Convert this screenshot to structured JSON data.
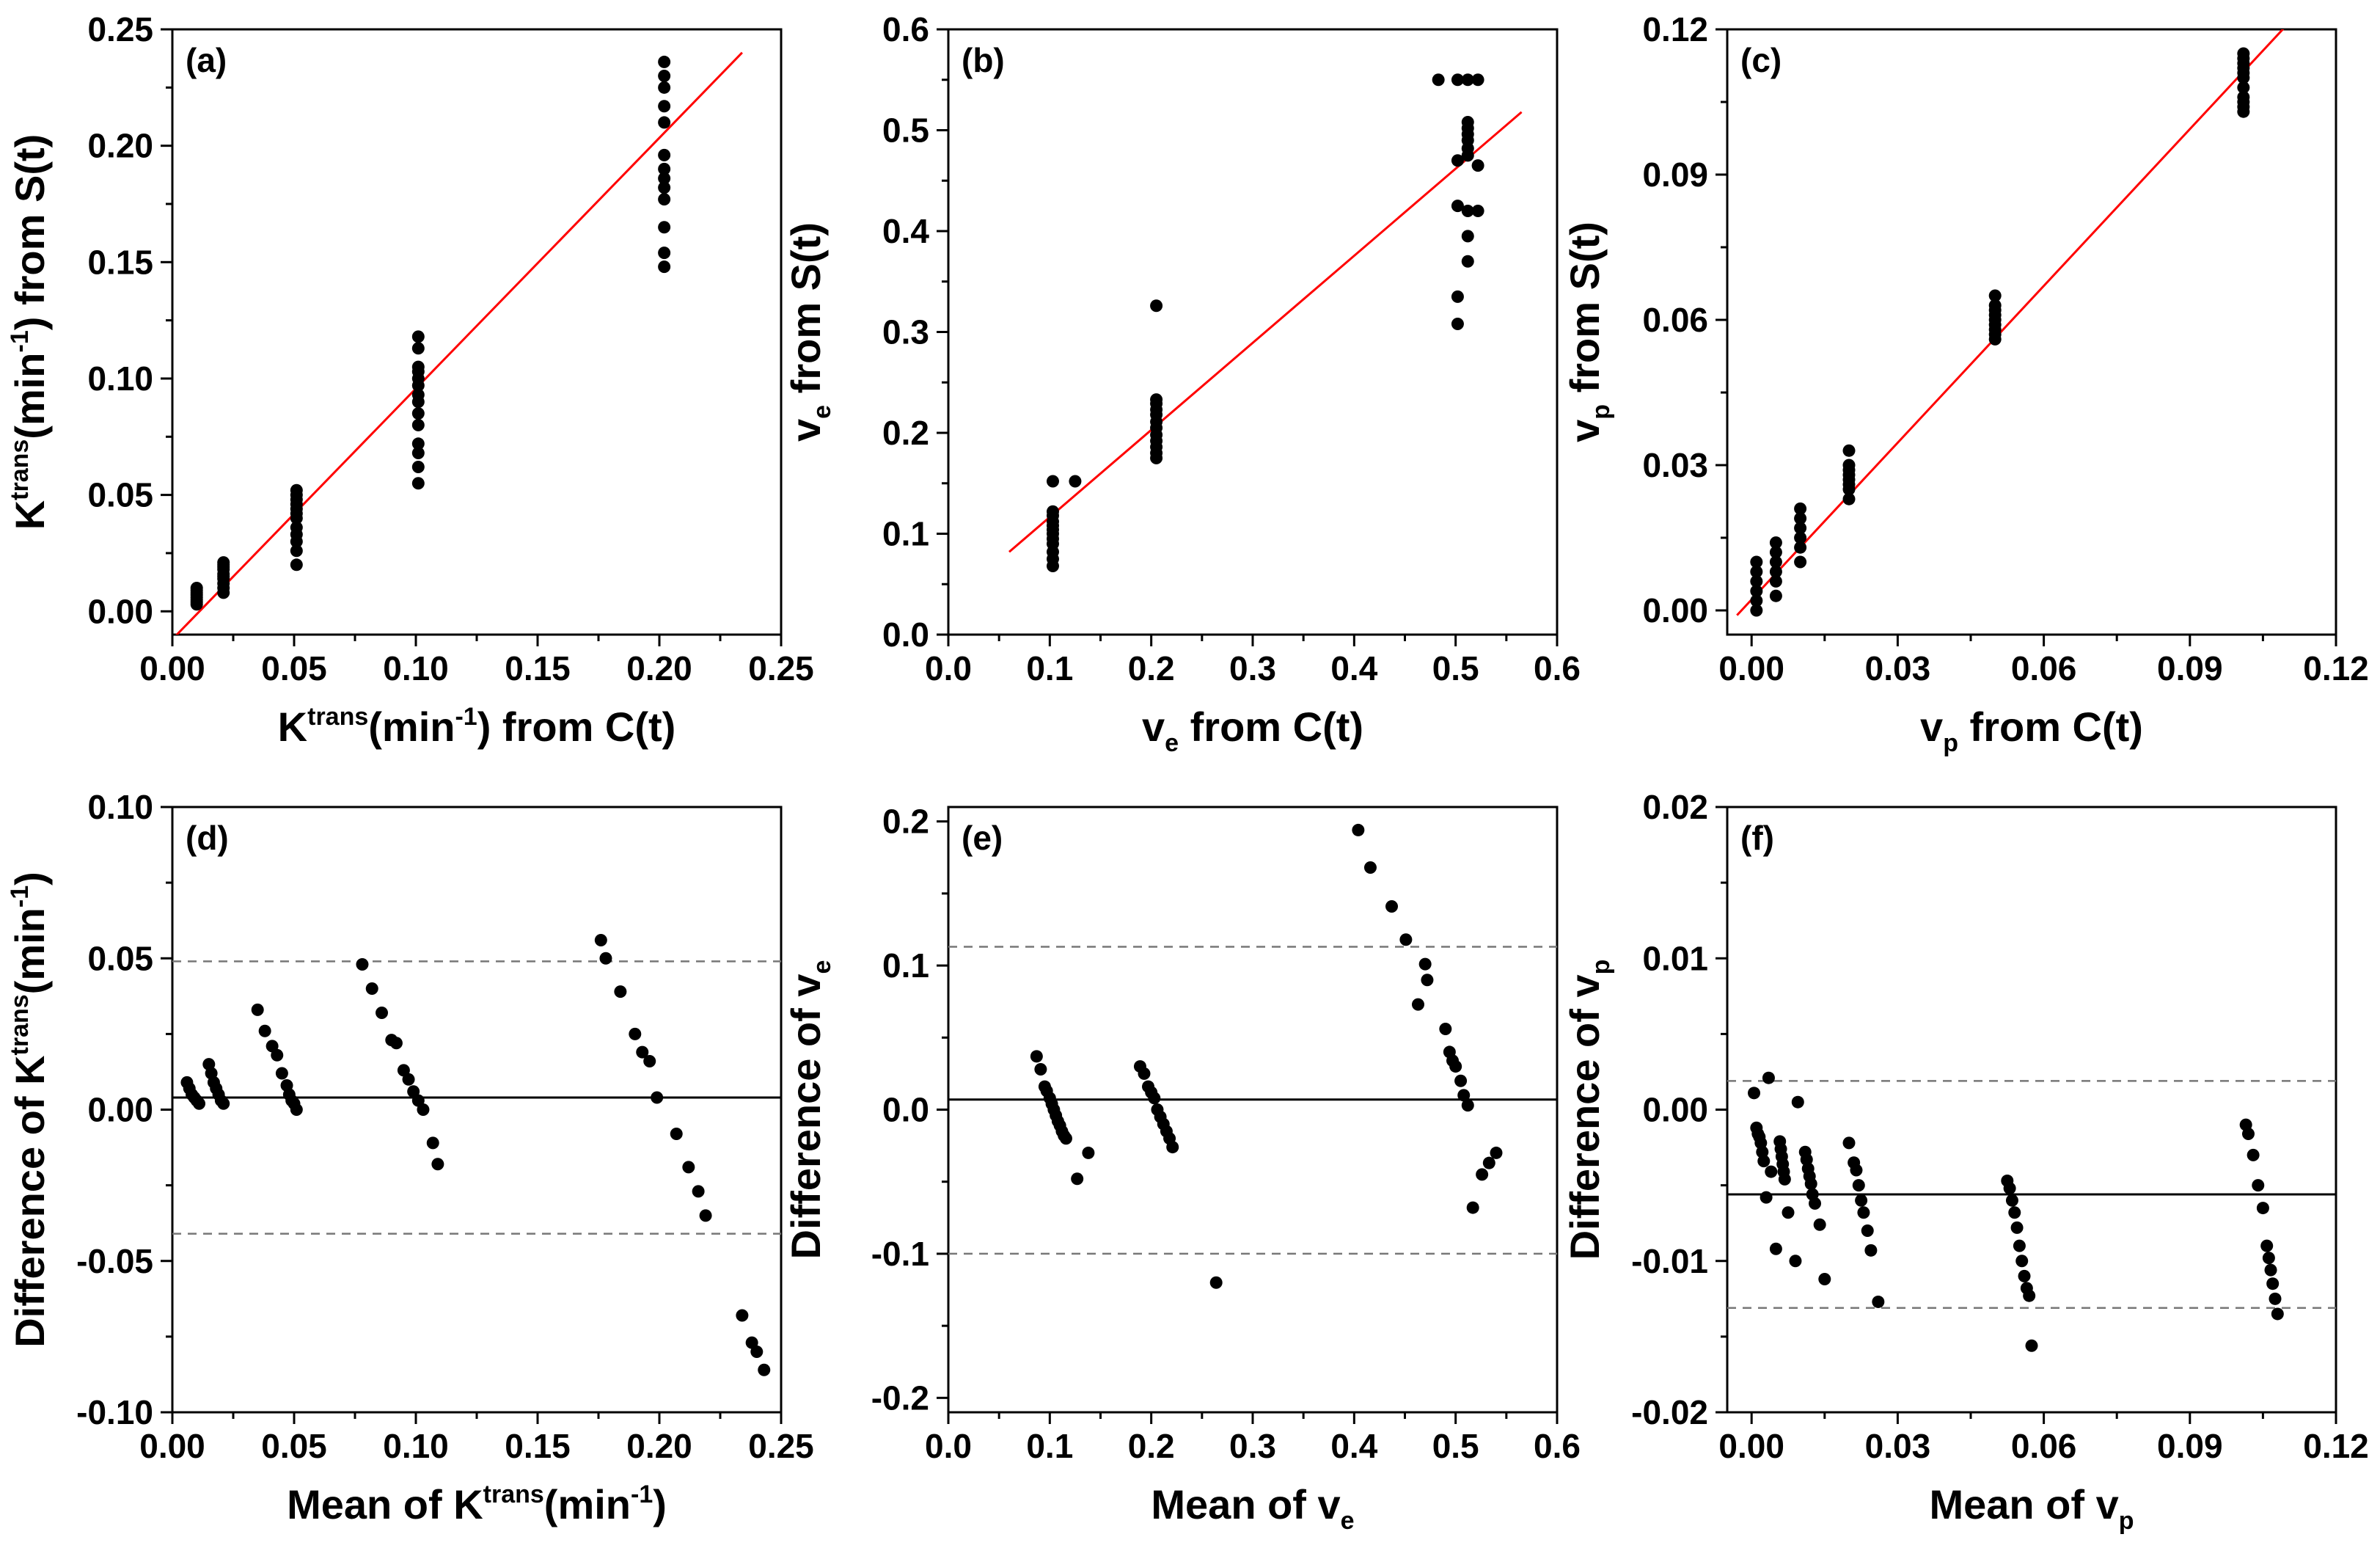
{
  "figure": {
    "description_labels": [
      "(a)",
      "(b)",
      "(c)",
      "(d)",
      "(e)",
      "(f)"
    ]
  },
  "chart_data": [
    {
      "id": "a",
      "panel_label": "(a)",
      "type": "scatter",
      "xlim": [
        0,
        0.25
      ],
      "ylim": [
        -0.01,
        0.25
      ],
      "xticks": [
        0.0,
        0.05,
        0.1,
        0.15,
        0.2,
        0.25
      ],
      "yticks": [
        0.0,
        0.05,
        0.1,
        0.15,
        0.2,
        0.25
      ],
      "tick_decimals": 2,
      "xlabel": {
        "base": "K",
        "sup": "trans",
        "mid": "(min",
        "sup2": "-1",
        "tail": ") from C(t)"
      },
      "ylabel": {
        "base": "K",
        "sup": "trans",
        "mid": "(min",
        "sup2": "-1",
        "tail": ") from S(t)"
      },
      "fit_line": {
        "color": "#ff0000",
        "x": [
          0.0,
          0.234
        ],
        "y": [
          -0.012,
          0.24
        ]
      },
      "clusters": [
        {
          "x": 0.01,
          "ys": [
            0.003,
            0.005,
            0.006,
            0.007,
            0.008,
            0.009,
            0.01,
            0.004
          ]
        },
        {
          "x": 0.021,
          "ys": [
            0.008,
            0.01,
            0.012,
            0.014,
            0.015,
            0.016,
            0.018,
            0.019,
            0.02,
            0.021
          ]
        },
        {
          "x": 0.051,
          "ys": [
            0.02,
            0.026,
            0.03,
            0.033,
            0.036,
            0.04,
            0.042,
            0.044,
            0.046,
            0.048,
            0.05,
            0.052
          ]
        },
        {
          "x": 0.101,
          "ys": [
            0.055,
            0.062,
            0.068,
            0.072,
            0.08,
            0.085,
            0.09,
            0.093,
            0.097,
            0.1,
            0.103,
            0.105,
            0.113,
            0.118
          ]
        },
        {
          "x": 0.202,
          "ys": [
            0.148,
            0.154,
            0.165,
            0.177,
            0.182,
            0.186,
            0.19,
            0.196,
            0.21,
            0.217,
            0.225,
            0.23,
            0.236
          ]
        }
      ]
    },
    {
      "id": "b",
      "panel_label": "(b)",
      "type": "scatter",
      "xlim": [
        0,
        0.6
      ],
      "ylim": [
        0,
        0.6
      ],
      "xticks": [
        0.0,
        0.1,
        0.2,
        0.3,
        0.4,
        0.5,
        0.6
      ],
      "yticks": [
        0.0,
        0.1,
        0.2,
        0.3,
        0.4,
        0.5,
        0.6
      ],
      "tick_decimals": 1,
      "xlabel": {
        "base": "v",
        "sub": "e",
        "tail": " from C(t)"
      },
      "ylabel": {
        "base": "v",
        "sub": "e",
        "tail": " from S(t)"
      },
      "fit_line": {
        "color": "#ff0000",
        "x": [
          0.06,
          0.565
        ],
        "y": [
          0.082,
          0.518
        ]
      },
      "clusters": [
        {
          "x": 0.103,
          "ys": [
            0.068,
            0.075,
            0.082,
            0.09,
            0.095,
            0.1,
            0.104,
            0.108,
            0.112,
            0.118,
            0.122,
            0.152
          ]
        },
        {
          "x": 0.125,
          "ys": [
            0.152
          ]
        },
        {
          "x": 0.205,
          "ys": [
            0.175,
            0.18,
            0.186,
            0.192,
            0.198,
            0.205,
            0.211,
            0.218,
            0.223,
            0.229,
            0.233,
            0.326
          ]
        },
        {
          "x": 0.483,
          "ys": [
            0.55
          ]
        },
        {
          "x": 0.502,
          "ys": [
            0.308,
            0.335,
            0.425,
            0.47,
            0.55
          ]
        },
        {
          "x": 0.512,
          "ys": [
            0.37,
            0.395,
            0.42,
            0.475,
            0.482,
            0.49,
            0.496,
            0.502,
            0.508,
            0.55
          ]
        },
        {
          "x": 0.522,
          "ys": [
            0.42,
            0.465,
            0.55
          ]
        }
      ]
    },
    {
      "id": "c",
      "panel_label": "(c)",
      "type": "scatter",
      "xlim": [
        -0.005,
        0.12
      ],
      "ylim": [
        -0.005,
        0.12
      ],
      "xticks": [
        0.0,
        0.03,
        0.06,
        0.09,
        0.12
      ],
      "yticks": [
        0.0,
        0.03,
        0.06,
        0.09,
        0.12
      ],
      "tick_decimals": 2,
      "xlabel": {
        "base": "v",
        "sub": "p",
        "tail": " from C(t)"
      },
      "ylabel": {
        "base": "v",
        "sub": "p",
        "tail": " from S(t)"
      },
      "fit_line": {
        "color": "#ff0000",
        "x": [
          -0.003,
          0.11
        ],
        "y": [
          -0.001,
          0.121
        ]
      },
      "clusters": [
        {
          "x": 0.001,
          "ys": [
            0.0,
            0.002,
            0.004,
            0.006,
            0.008,
            0.01
          ]
        },
        {
          "x": 0.005,
          "ys": [
            0.003,
            0.006,
            0.008,
            0.01,
            0.012,
            0.014
          ]
        },
        {
          "x": 0.01,
          "ys": [
            0.01,
            0.013,
            0.015,
            0.017,
            0.019,
            0.021
          ]
        },
        {
          "x": 0.02,
          "ys": [
            0.023,
            0.025,
            0.026,
            0.027,
            0.028,
            0.029,
            0.03,
            0.033
          ]
        },
        {
          "x": 0.05,
          "ys": [
            0.056,
            0.057,
            0.058,
            0.059,
            0.06,
            0.061,
            0.062,
            0.063,
            0.065
          ]
        },
        {
          "x": 0.101,
          "ys": [
            0.103,
            0.104,
            0.105,
            0.106,
            0.108,
            0.11,
            0.111,
            0.112,
            0.113,
            0.114,
            0.115
          ]
        }
      ]
    },
    {
      "id": "d",
      "panel_label": "(d)",
      "type": "scatter",
      "xlim": [
        0,
        0.25
      ],
      "ylim": [
        -0.1,
        0.1
      ],
      "xticks": [
        0.0,
        0.05,
        0.1,
        0.15,
        0.2,
        0.25
      ],
      "yticks": [
        -0.1,
        -0.05,
        0.0,
        0.05,
        0.1
      ],
      "tick_decimals": 2,
      "xlabel": {
        "pre": "Mean of ",
        "base": "K",
        "sup": "trans",
        "mid": "(min",
        "sup2": "-1",
        "tail": ")"
      },
      "ylabel": {
        "pre": "Difference of ",
        "base": "K",
        "sup": "trans",
        "mid": "(min",
        "sup2": "-1",
        "tail": ")"
      },
      "mean_line": 0.004,
      "limit_lines": [
        0.049,
        -0.041
      ],
      "points": [
        [
          0.006,
          0.009
        ],
        [
          0.007,
          0.007
        ],
        [
          0.008,
          0.005
        ],
        [
          0.009,
          0.004
        ],
        [
          0.01,
          0.003
        ],
        [
          0.011,
          0.002
        ],
        [
          0.015,
          0.015
        ],
        [
          0.016,
          0.012
        ],
        [
          0.017,
          0.009
        ],
        [
          0.018,
          0.007
        ],
        [
          0.019,
          0.005
        ],
        [
          0.02,
          0.003
        ],
        [
          0.021,
          0.002
        ],
        [
          0.035,
          0.033
        ],
        [
          0.038,
          0.026
        ],
        [
          0.041,
          0.021
        ],
        [
          0.043,
          0.018
        ],
        [
          0.045,
          0.012
        ],
        [
          0.047,
          0.008
        ],
        [
          0.048,
          0.005
        ],
        [
          0.049,
          0.003
        ],
        [
          0.05,
          0.002
        ],
        [
          0.051,
          0.0
        ],
        [
          0.078,
          0.048
        ],
        [
          0.082,
          0.04
        ],
        [
          0.086,
          0.032
        ],
        [
          0.09,
          0.023
        ],
        [
          0.092,
          0.022
        ],
        [
          0.095,
          0.013
        ],
        [
          0.097,
          0.01
        ],
        [
          0.099,
          0.006
        ],
        [
          0.101,
          0.003
        ],
        [
          0.103,
          0.0
        ],
        [
          0.107,
          -0.011
        ],
        [
          0.109,
          -0.018
        ],
        [
          0.176,
          0.056
        ],
        [
          0.178,
          0.05
        ],
        [
          0.184,
          0.039
        ],
        [
          0.19,
          0.025
        ],
        [
          0.193,
          0.019
        ],
        [
          0.196,
          0.016
        ],
        [
          0.199,
          0.004
        ],
        [
          0.207,
          -0.008
        ],
        [
          0.212,
          -0.019
        ],
        [
          0.216,
          -0.027
        ],
        [
          0.219,
          -0.035
        ],
        [
          0.234,
          -0.068
        ],
        [
          0.238,
          -0.077
        ],
        [
          0.24,
          -0.08
        ],
        [
          0.243,
          -0.086
        ]
      ]
    },
    {
      "id": "e",
      "panel_label": "(e)",
      "type": "scatter",
      "xlim": [
        0,
        0.6
      ],
      "ylim": [
        -0.21,
        0.21
      ],
      "xticks": [
        0.0,
        0.1,
        0.2,
        0.3,
        0.4,
        0.5,
        0.6
      ],
      "yticks": [
        -0.2,
        -0.1,
        0.0,
        0.1,
        0.2
      ],
      "tick_decimals": 1,
      "xlabel": {
        "pre": "Mean of ",
        "base": "v",
        "sub": "e",
        "tail": ""
      },
      "ylabel": {
        "pre": "Difference of ",
        "base": "v",
        "sub": "e",
        "tail": ""
      },
      "mean_line": 0.007,
      "limit_lines": [
        0.113,
        -0.1
      ],
      "points": [
        [
          0.087,
          0.037
        ],
        [
          0.091,
          0.028
        ],
        [
          0.095,
          0.016
        ],
        [
          0.097,
          0.013
        ],
        [
          0.1,
          0.008
        ],
        [
          0.102,
          0.004
        ],
        [
          0.104,
          0.0
        ],
        [
          0.106,
          -0.004
        ],
        [
          0.108,
          -0.008
        ],
        [
          0.11,
          -0.011
        ],
        [
          0.112,
          -0.015
        ],
        [
          0.114,
          -0.018
        ],
        [
          0.116,
          -0.02
        ],
        [
          0.127,
          -0.048
        ],
        [
          0.138,
          -0.03
        ],
        [
          0.189,
          0.03
        ],
        [
          0.193,
          0.025
        ],
        [
          0.197,
          0.016
        ],
        [
          0.2,
          0.012
        ],
        [
          0.203,
          0.008
        ],
        [
          0.206,
          0.0
        ],
        [
          0.209,
          -0.005
        ],
        [
          0.212,
          -0.01
        ],
        [
          0.215,
          -0.015
        ],
        [
          0.218,
          -0.02
        ],
        [
          0.221,
          -0.026
        ],
        [
          0.264,
          -0.12
        ],
        [
          0.404,
          0.194
        ],
        [
          0.416,
          0.168
        ],
        [
          0.437,
          0.141
        ],
        [
          0.451,
          0.118
        ],
        [
          0.463,
          0.073
        ],
        [
          0.47,
          0.101
        ],
        [
          0.472,
          0.09
        ],
        [
          0.49,
          0.056
        ],
        [
          0.494,
          0.04
        ],
        [
          0.497,
          0.034
        ],
        [
          0.5,
          0.03
        ],
        [
          0.505,
          0.02
        ],
        [
          0.508,
          0.01
        ],
        [
          0.512,
          0.003
        ],
        [
          0.517,
          -0.068
        ],
        [
          0.526,
          -0.045
        ],
        [
          0.533,
          -0.037
        ],
        [
          0.54,
          -0.03
        ]
      ]
    },
    {
      "id": "f",
      "panel_label": "(f)",
      "type": "scatter",
      "xlim": [
        -0.005,
        0.12
      ],
      "ylim": [
        -0.02,
        0.02
      ],
      "xticks": [
        0.0,
        0.03,
        0.06,
        0.09,
        0.12
      ],
      "yticks": [
        -0.02,
        -0.01,
        0.0,
        0.01,
        0.02
      ],
      "tick_decimals": 2,
      "xlabel": {
        "pre": "Mean of ",
        "base": "v",
        "sub": "p",
        "tail": ""
      },
      "ylabel": {
        "pre": "Difference of ",
        "base": "v",
        "sub": "p",
        "tail": ""
      },
      "mean_line": -0.0056,
      "limit_lines": [
        0.0019,
        -0.0131
      ],
      "points": [
        [
          0.0005,
          0.0011
        ],
        [
          0.001,
          -0.0012
        ],
        [
          0.0013,
          -0.0016
        ],
        [
          0.0016,
          -0.0018
        ],
        [
          0.0019,
          -0.0022
        ],
        [
          0.0022,
          -0.0028
        ],
        [
          0.0025,
          -0.0034
        ],
        [
          0.003,
          -0.0058
        ],
        [
          0.0035,
          0.0021
        ],
        [
          0.004,
          -0.0041
        ],
        [
          0.005,
          -0.0092
        ],
        [
          0.0058,
          -0.0021
        ],
        [
          0.006,
          -0.0026
        ],
        [
          0.0062,
          -0.0031
        ],
        [
          0.0064,
          -0.0036
        ],
        [
          0.0066,
          -0.0041
        ],
        [
          0.0068,
          -0.0046
        ],
        [
          0.0075,
          -0.0068
        ],
        [
          0.009,
          -0.01
        ],
        [
          0.0095,
          0.0005
        ],
        [
          0.011,
          -0.0028
        ],
        [
          0.0113,
          -0.0033
        ],
        [
          0.0116,
          -0.0039
        ],
        [
          0.0119,
          -0.0044
        ],
        [
          0.0122,
          -0.0049
        ],
        [
          0.0125,
          -0.0056
        ],
        [
          0.013,
          -0.0062
        ],
        [
          0.014,
          -0.0076
        ],
        [
          0.015,
          -0.0112
        ],
        [
          0.02,
          -0.0022
        ],
        [
          0.021,
          -0.0035
        ],
        [
          0.0215,
          -0.004
        ],
        [
          0.022,
          -0.005
        ],
        [
          0.0225,
          -0.006
        ],
        [
          0.023,
          -0.0068
        ],
        [
          0.0238,
          -0.008
        ],
        [
          0.0245,
          -0.0093
        ],
        [
          0.026,
          -0.0127
        ],
        [
          0.0525,
          -0.0047
        ],
        [
          0.053,
          -0.0052
        ],
        [
          0.0535,
          -0.006
        ],
        [
          0.054,
          -0.0068
        ],
        [
          0.0545,
          -0.0078
        ],
        [
          0.055,
          -0.009
        ],
        [
          0.0555,
          -0.01
        ],
        [
          0.056,
          -0.011
        ],
        [
          0.0565,
          -0.0118
        ],
        [
          0.057,
          -0.0123
        ],
        [
          0.0575,
          -0.0156
        ],
        [
          0.1015,
          -0.001
        ],
        [
          0.102,
          -0.0016
        ],
        [
          0.103,
          -0.003
        ],
        [
          0.104,
          -0.005
        ],
        [
          0.105,
          -0.0065
        ],
        [
          0.1058,
          -0.009
        ],
        [
          0.1062,
          -0.0098
        ],
        [
          0.1066,
          -0.0106
        ],
        [
          0.107,
          -0.0115
        ],
        [
          0.1075,
          -0.0125
        ],
        [
          0.108,
          -0.0135
        ]
      ]
    }
  ]
}
